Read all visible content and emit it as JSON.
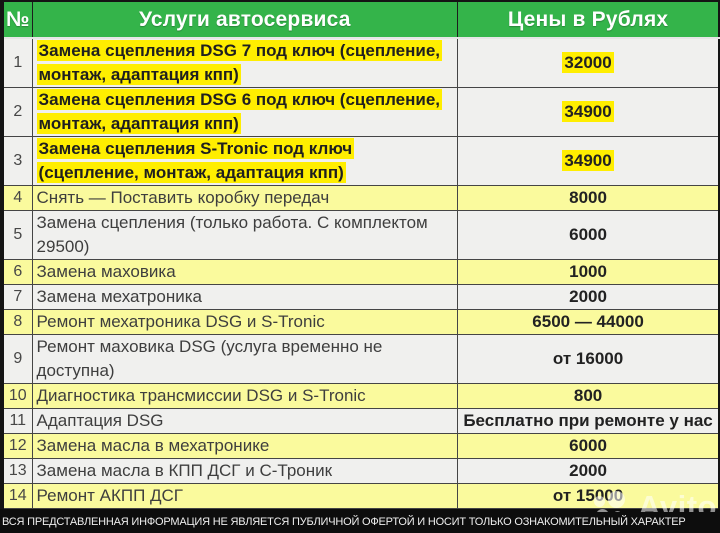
{
  "table": {
    "header": {
      "num_label": "№",
      "services_label": "Услуги автосервиса",
      "prices_label": "Цены в Рублях"
    },
    "rows": [
      {
        "num": "1",
        "service": "Замена сцепления DSG 7 под ключ (сцепление,\nмонтаж, адаптация кпп)",
        "price": "32000",
        "style": "highlight"
      },
      {
        "num": "2",
        "service": "Замена сцепления DSG 6 под ключ (сцепление,\nмонтаж, адаптация кпп)",
        "price": "34900",
        "style": "highlight"
      },
      {
        "num": "3",
        "service": "Замена сцепления S-Tronic под ключ\n(сцепление, монтаж, адаптация кпп)",
        "price": "34900",
        "style": "highlight"
      },
      {
        "num": "4",
        "service": "Снять — Поставить коробку передач",
        "price": "8000",
        "style": "yellow"
      },
      {
        "num": "5",
        "service": "Замена сцепления (только работа. С комплектом\n29500)",
        "price": "6000",
        "style": "gray"
      },
      {
        "num": "6",
        "service": "Замена маховика",
        "price": "1000",
        "style": "yellow"
      },
      {
        "num": "7",
        "service": "Замена мехатроника",
        "price": "2000",
        "style": "gray"
      },
      {
        "num": "8",
        "service": "Ремонт мехатроника DSG и S-Tronic",
        "price": "6500 — 44000",
        "style": "yellow"
      },
      {
        "num": "9",
        "service": "Ремонт маховика DSG (услуга временно не\nдоступна)",
        "price": "от 16000",
        "style": "gray"
      },
      {
        "num": "10",
        "service": "Диагностика трансмиссии DSG и S-Tronic",
        "price": "800",
        "style": "yellow"
      },
      {
        "num": "11",
        "service": "Адаптация DSG",
        "price": "Бесплатно при ремонте у нас",
        "style": "gray"
      },
      {
        "num": "12",
        "service": "Замена масла в мехатронике",
        "price": "6000",
        "style": "yellow"
      },
      {
        "num": "13",
        "service": "Замена масла в КПП ДСГ и С-Троник",
        "price": "2000",
        "style": "gray"
      },
      {
        "num": "14",
        "service": "Ремонт АКПП ДСГ",
        "price": "от 15000",
        "style": "yellow"
      }
    ]
  },
  "footer": {
    "disclaimer": "ВСЯ ПРЕДСТАВЛЕННАЯ ИНФОРМАЦИЯ НЕ ЯВЛЯЕТСЯ ПУБЛИЧНОЙ ОФЕРТОЙ И НОСИТ ТОЛЬКО ОЗНАКОМИТЕЛЬНЫЙ ХАРАКТЕР"
  },
  "watermark": {
    "text": "Avito"
  },
  "colors": {
    "header_green": "#34b44a",
    "highlight_yellow": "#ffee00",
    "row_yellow": "#fafa9d",
    "row_gray": "#f0f0ee",
    "footer_black": "#0d0d0d"
  }
}
